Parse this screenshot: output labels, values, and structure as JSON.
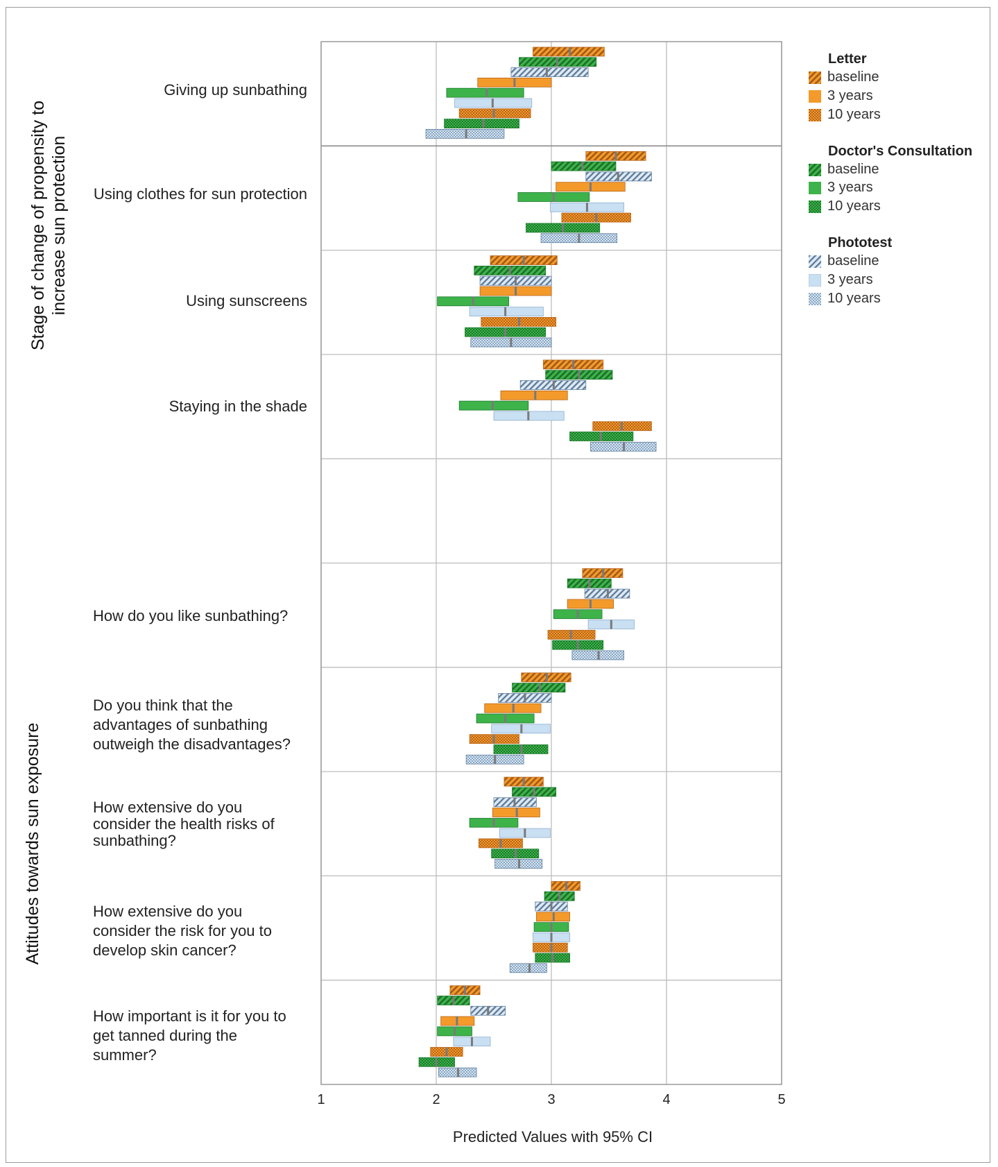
{
  "colors": {
    "letter": "#f39a2b",
    "letter_dark": "#b8651a",
    "doctor": "#3db34a",
    "doctor_dark": "#1c7a2c",
    "phototest": "#c9dff2",
    "phototest_dark": "#607f9e",
    "median_tick": "#7a7a7a",
    "grid": "#bdbdbd"
  },
  "legend": {
    "groups": [
      {
        "title": "Letter",
        "items": [
          {
            "label": "baseline",
            "pattern": "letter-baseline"
          },
          {
            "label": "3 years",
            "pattern": "letter-3"
          },
          {
            "label": "10 years",
            "pattern": "letter-10"
          }
        ]
      },
      {
        "title": "Doctor's Consultation",
        "items": [
          {
            "label": "baseline",
            "pattern": "doctor-baseline"
          },
          {
            "label": "3 years",
            "pattern": "doctor-3"
          },
          {
            "label": "10 years",
            "pattern": "doctor-10"
          }
        ]
      },
      {
        "title": "Phototest",
        "items": [
          {
            "label": "baseline",
            "pattern": "photo-baseline"
          },
          {
            "label": "3 years",
            "pattern": "photo-3"
          },
          {
            "label": "10 years",
            "pattern": "photo-10"
          }
        ]
      }
    ]
  },
  "group_titles": {
    "stage": "Stage of change of propensity to\nincrease sun protection",
    "attitudes": "Attitudes towards sun exposure"
  },
  "chart_data": {
    "type": "interval",
    "xlabel": "Predicted Values with 95% CI",
    "xlim": [
      1,
      5
    ],
    "xticks": [
      "1",
      "2",
      "3",
      "4",
      "5"
    ],
    "grid": true,
    "legend_position": "right",
    "series_order": [
      "Letter baseline",
      "Doctor's Consultation baseline",
      "Phototest baseline",
      "Letter 3 years",
      "Doctor's Consultation 3 years",
      "Phototest 3 years",
      "Letter 10 years",
      "Doctor's Consultation 10 years",
      "Phototest 10 years"
    ],
    "rows": [
      {
        "label": "Giving up sunbathing",
        "group": "stage",
        "intervals": [
          [
            2.84,
            3.16,
            3.46
          ],
          [
            2.72,
            3.05,
            3.39
          ],
          [
            2.65,
            2.96,
            3.32
          ],
          [
            2.36,
            2.68,
            3.0
          ],
          [
            2.09,
            2.44,
            2.76
          ],
          [
            2.16,
            2.49,
            2.83
          ],
          [
            2.2,
            2.5,
            2.82
          ],
          [
            2.07,
            2.41,
            2.72
          ],
          [
            1.91,
            2.26,
            2.59
          ]
        ]
      },
      {
        "label": "Using clothes for sun protection",
        "group": "stage",
        "intervals": [
          [
            3.3,
            3.56,
            3.82
          ],
          [
            3.0,
            3.27,
            3.56
          ],
          [
            3.3,
            3.58,
            3.87
          ],
          [
            3.04,
            3.34,
            3.64
          ],
          [
            2.71,
            3.02,
            3.33
          ],
          [
            2.99,
            3.31,
            3.63
          ],
          [
            3.09,
            3.39,
            3.69
          ],
          [
            2.78,
            3.1,
            3.42
          ],
          [
            2.91,
            3.24,
            3.57
          ]
        ]
      },
      {
        "label": "Using sunscreens",
        "group": "stage",
        "intervals": [
          [
            2.47,
            2.76,
            3.05
          ],
          [
            2.33,
            2.64,
            2.95
          ],
          [
            2.38,
            2.69,
            3.0
          ],
          [
            2.38,
            2.69,
            3.0
          ],
          [
            2.01,
            2.32,
            2.63
          ],
          [
            2.29,
            2.6,
            2.93
          ],
          [
            2.39,
            2.72,
            3.04
          ],
          [
            2.25,
            2.6,
            2.95
          ],
          [
            2.3,
            2.65,
            3.0
          ]
        ]
      },
      {
        "label": "Staying in the shade",
        "group": "stage",
        "intervals": [
          [
            2.93,
            3.19,
            3.45
          ],
          [
            2.95,
            3.24,
            3.53
          ],
          [
            2.73,
            3.02,
            3.3
          ],
          [
            2.56,
            2.86,
            3.14
          ],
          [
            2.2,
            2.49,
            2.8
          ],
          [
            2.5,
            2.8,
            3.11
          ],
          [
            3.36,
            3.61,
            3.87
          ],
          [
            3.16,
            3.43,
            3.71
          ],
          [
            3.34,
            3.63,
            3.91
          ]
        ]
      },
      {
        "label": "",
        "group": "stage",
        "intervals": []
      },
      {
        "label": "How do you like sunbathing?",
        "group": "attitudes",
        "intervals": [
          [
            3.27,
            3.45,
            3.62
          ],
          [
            3.14,
            3.33,
            3.52
          ],
          [
            3.29,
            3.49,
            3.68
          ],
          [
            3.14,
            3.34,
            3.54
          ],
          [
            3.02,
            3.23,
            3.44
          ],
          [
            3.32,
            3.52,
            3.72
          ],
          [
            2.97,
            3.17,
            3.38
          ],
          [
            3.01,
            3.23,
            3.45
          ],
          [
            3.18,
            3.41,
            3.63
          ]
        ]
      },
      {
        "label": "Do you think that the\nadvantages of sunbathing\noutweigh the disadvantages?",
        "group": "attitudes",
        "intervals": [
          [
            2.74,
            2.96,
            3.17
          ],
          [
            2.66,
            2.9,
            3.12
          ],
          [
            2.54,
            2.77,
            3.0
          ],
          [
            2.42,
            2.67,
            2.91
          ],
          [
            2.35,
            2.6,
            2.85
          ],
          [
            2.48,
            2.74,
            2.99
          ],
          [
            2.29,
            2.5,
            2.72
          ],
          [
            2.5,
            2.74,
            2.97
          ],
          [
            2.26,
            2.51,
            2.76
          ]
        ]
      },
      {
        "label": "How extensive do you\nconsider the health risks of\nsunbathing?",
        "group": "attitudes",
        "intervals": [
          [
            2.59,
            2.76,
            2.93
          ],
          [
            2.66,
            2.85,
            3.04
          ],
          [
            2.5,
            2.68,
            2.87
          ],
          [
            2.49,
            2.7,
            2.9
          ],
          [
            2.29,
            2.5,
            2.71
          ],
          [
            2.55,
            2.77,
            2.99
          ],
          [
            2.37,
            2.56,
            2.75
          ],
          [
            2.48,
            2.69,
            2.89
          ],
          [
            2.51,
            2.72,
            2.92
          ]
        ]
      },
      {
        "label": "How extensive do you\nconsider the risk for you to\ndevelop skin cancer?",
        "group": "attitudes",
        "intervals": [
          [
            3.0,
            3.13,
            3.25
          ],
          [
            2.94,
            3.07,
            3.2
          ],
          [
            2.86,
            3.0,
            3.14
          ],
          [
            2.87,
            3.02,
            3.16
          ],
          [
            2.85,
            3.0,
            3.15
          ],
          [
            2.84,
            3.0,
            3.16
          ],
          [
            2.84,
            3.0,
            3.14
          ],
          [
            2.86,
            3.01,
            3.16
          ],
          [
            2.64,
            2.81,
            2.96
          ]
        ]
      },
      {
        "label": "How important is it for you to\nget tanned during the\nsummer?",
        "group": "attitudes",
        "intervals": [
          [
            2.12,
            2.25,
            2.38
          ],
          [
            2.01,
            2.15,
            2.29
          ],
          [
            2.3,
            2.45,
            2.6
          ],
          [
            2.04,
            2.18,
            2.33
          ],
          [
            2.01,
            2.16,
            2.31
          ],
          [
            2.15,
            2.31,
            2.47
          ],
          [
            1.95,
            2.09,
            2.23
          ],
          [
            1.85,
            2.0,
            2.16
          ],
          [
            2.02,
            2.19,
            2.35
          ]
        ]
      }
    ]
  }
}
